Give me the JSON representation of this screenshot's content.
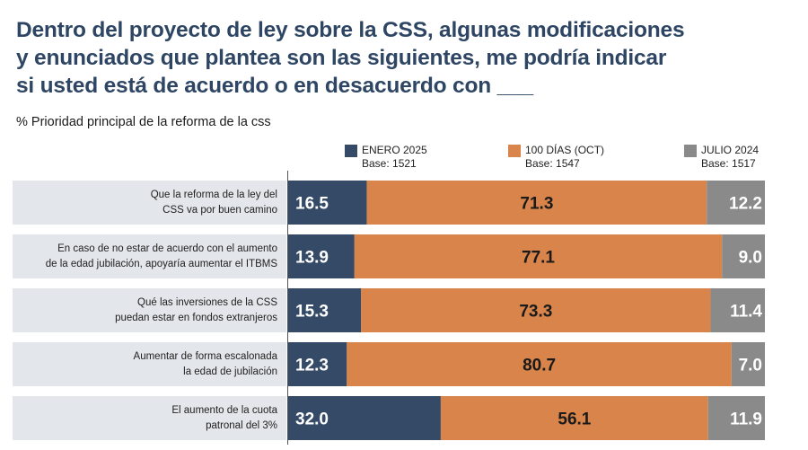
{
  "title_lines": [
    "Dentro del proyecto de ley sobre la CSS, algunas modificaciones",
    "y enunciados que plantea son las siguientes, me podría indicar",
    "si usted está de acuerdo o en desacuerdo con ___"
  ],
  "subtitle": "% Prioridad principal de la reforma de la css",
  "colors": {
    "enero": "#344a66",
    "oct": "#d8844a",
    "julio": "#8a8a8a",
    "title": "#2e4663"
  },
  "chart_data": {
    "type": "bar",
    "orientation": "horizontal",
    "stacked": true,
    "categories": [
      [
        "Que la reforma de la ley del",
        "CSS va por buen camino"
      ],
      [
        "En caso de no estar de acuerdo con el aumento",
        "de la edad jubilación, apoyaría aumentar el ITBMS"
      ],
      [
        "Qué las inversiones de la CSS",
        "puedan estar en fondos extranjeros"
      ],
      [
        "Aumentar de forma escalonada",
        "la edad de jubilación"
      ],
      [
        "El aumento de la cuota",
        "patronal del 3%"
      ]
    ],
    "series": [
      {
        "name": "ENERO 2025",
        "base": "Base: 1521",
        "values": [
          16.5,
          13.9,
          15.3,
          12.3,
          32.0
        ],
        "labels": [
          "16.5",
          "13.9",
          "15.3",
          "12.3",
          "32.0"
        ]
      },
      {
        "name": "100 DÍAS (OCT)",
        "base": "Base: 1547",
        "values": [
          71.3,
          77.1,
          73.3,
          80.7,
          56.1
        ],
        "labels": [
          "71.3",
          "77.1",
          "73.3",
          "80.7",
          "56.1"
        ]
      },
      {
        "name": "JULIO 2024",
        "base": "Base: 1517",
        "values": [
          12.2,
          9.0,
          11.4,
          7.0,
          11.9
        ],
        "labels": [
          "12.2",
          "9.0",
          "11.4",
          "7.0",
          "11.9"
        ]
      }
    ],
    "title": "Dentro del proyecto de ley sobre la CSS, algunas modificaciones y enunciados que plantea son las siguientes, me podría indicar si usted está de acuerdo o en desacuerdo con ___",
    "subtitle": "% Prioridad principal de la reforma de la css",
    "xlim": [
      0,
      100
    ],
    "grid": false,
    "legend": "top"
  }
}
